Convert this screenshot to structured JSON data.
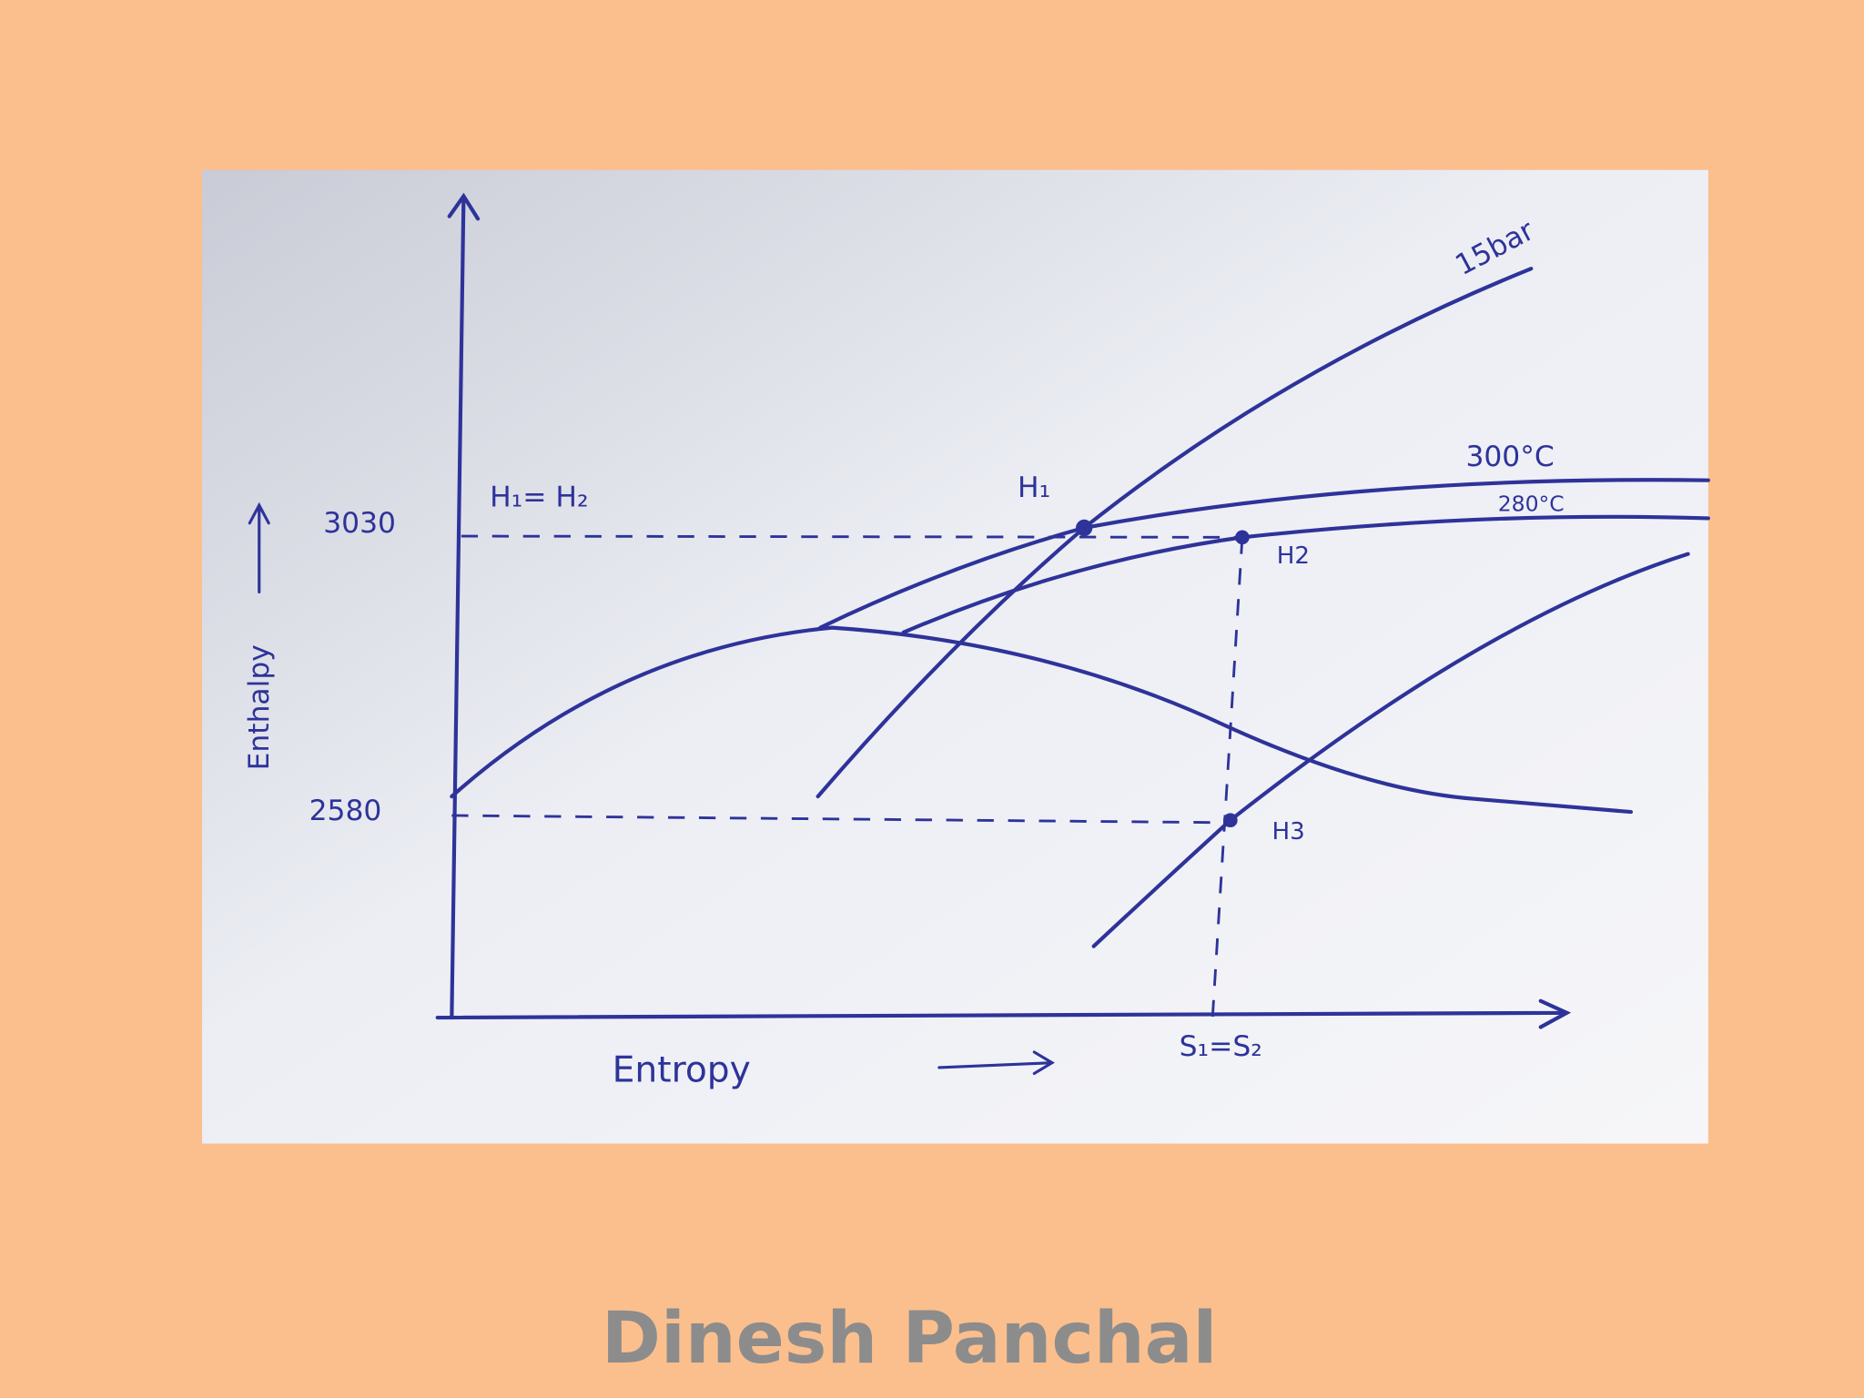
{
  "diagram": {
    "y_axis_label": "Enthalpy",
    "x_axis_label": "Entropy",
    "y_labels": [
      "3030",
      "2580"
    ],
    "x_label": "S₁=S₂",
    "annotations": {
      "equality": "H₁= H₂",
      "h1": "H₁",
      "h2": "H2",
      "h3": "H3",
      "pressure": "15bar",
      "temp_high": "300°C",
      "temp_low": "280°C"
    }
  },
  "footer": {
    "author": "Dinesh Panchal"
  }
}
